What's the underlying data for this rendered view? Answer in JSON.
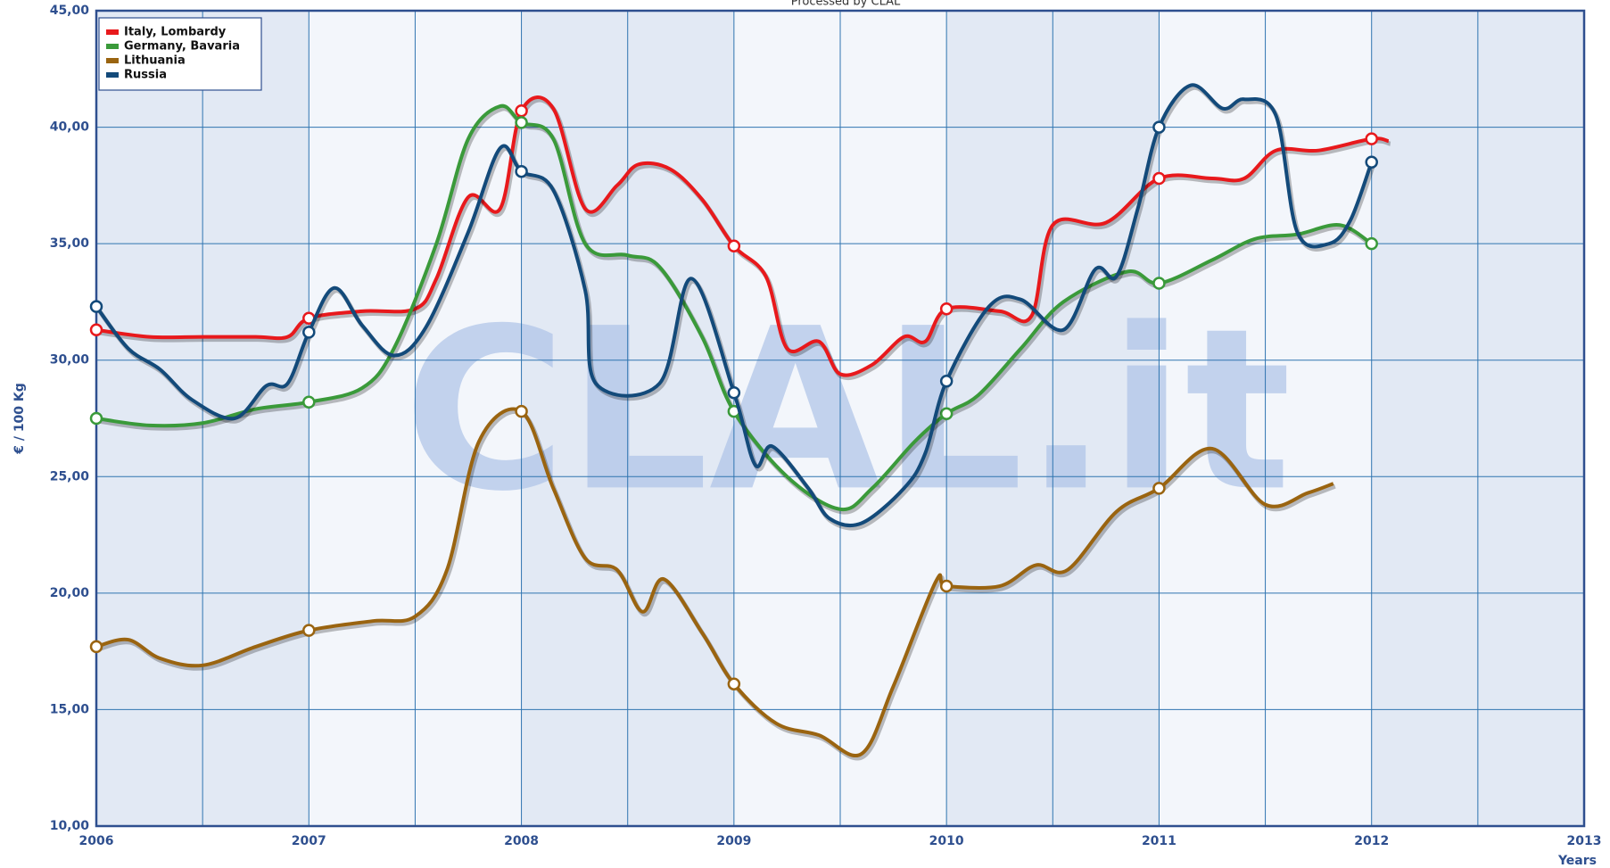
{
  "chart_data": {
    "type": "line",
    "title": "Processed by CLAL",
    "watermark": "CLAL.it",
    "y_label": "€ / 100 Kg",
    "x_label": "Years",
    "xlim": [
      2006,
      2013
    ],
    "xticks": [
      2006,
      2007,
      2008,
      2009,
      2010,
      2011,
      2012,
      2013
    ],
    "ylim": [
      10,
      45
    ],
    "yticks": [
      {
        "value": 10,
        "label": "10,00"
      },
      {
        "value": 15,
        "label": "15,00"
      },
      {
        "value": 20,
        "label": "20,00"
      },
      {
        "value": 25,
        "label": "25,00"
      },
      {
        "value": 30,
        "label": "30,00"
      },
      {
        "value": 35,
        "label": "35,00"
      },
      {
        "value": 40,
        "label": "40,00"
      },
      {
        "value": 45,
        "label": "45,00"
      }
    ],
    "grid": true,
    "legend": "top-left",
    "series": [
      {
        "name": "Italy, Lombardy",
        "color": "#e8191c",
        "x": [
          2006,
          2006.25,
          2006.5,
          2006.75,
          2006.9,
          2007,
          2007.25,
          2007.5,
          2007.6,
          2007.75,
          2007.9,
          2008,
          2008.15,
          2008.3,
          2008.45,
          2008.55,
          2008.7,
          2008.85,
          2009,
          2009.15,
          2009.25,
          2009.4,
          2009.5,
          2009.65,
          2009.8,
          2009.9,
          2010,
          2010.25,
          2010.4,
          2010.5,
          2010.75,
          2011,
          2011.25,
          2011.4,
          2011.55,
          2011.75,
          2012,
          2012.08
        ],
        "values": [
          31.3,
          31.0,
          31.0,
          31.0,
          31.0,
          31.8,
          32.1,
          32.2,
          33.5,
          37.0,
          36.5,
          40.7,
          40.8,
          36.5,
          37.5,
          38.4,
          38.2,
          36.9,
          34.9,
          33.6,
          30.5,
          30.8,
          29.4,
          29.8,
          31.0,
          30.8,
          32.2,
          32.1,
          31.9,
          35.8,
          35.9,
          37.8,
          37.8,
          37.8,
          39.0,
          39.0,
          39.5,
          39.4
        ]
      },
      {
        "name": "Germany, Bavaria",
        "color": "#3a9a3a",
        "x": [
          2006,
          2006.25,
          2006.5,
          2006.75,
          2007,
          2007.25,
          2007.4,
          2007.6,
          2007.75,
          2007.9,
          2008,
          2008.15,
          2008.3,
          2008.5,
          2008.65,
          2008.85,
          2009,
          2009.25,
          2009.5,
          2009.65,
          2009.85,
          2010,
          2010.15,
          2010.35,
          2010.55,
          2010.85,
          2011,
          2011.25,
          2011.45,
          2011.65,
          2011.85,
          2012
        ],
        "values": [
          27.5,
          27.2,
          27.3,
          27.9,
          28.2,
          28.8,
          30.5,
          35.0,
          39.5,
          40.9,
          40.2,
          39.5,
          35.0,
          34.5,
          34.0,
          31.0,
          27.8,
          25.0,
          23.6,
          24.5,
          26.5,
          27.7,
          28.5,
          30.5,
          32.5,
          33.8,
          33.3,
          34.3,
          35.2,
          35.4,
          35.8,
          35.0
        ]
      },
      {
        "name": "Lithuania",
        "color": "#9a6410",
        "x": [
          2006,
          2006.15,
          2006.3,
          2006.5,
          2006.75,
          2007,
          2007.3,
          2007.5,
          2007.65,
          2007.8,
          2008,
          2008.15,
          2008.3,
          2008.45,
          2008.57,
          2008.67,
          2008.85,
          2009,
          2009.2,
          2009.4,
          2009.6,
          2009.75,
          2009.95,
          2010,
          2010.25,
          2010.42,
          2010.57,
          2010.8,
          2011,
          2011.25,
          2011.5,
          2011.7,
          2011.82
        ],
        "values": [
          17.7,
          18.0,
          17.2,
          16.9,
          17.7,
          18.4,
          18.8,
          19.0,
          21.0,
          26.5,
          27.8,
          24.5,
          21.5,
          21.0,
          19.2,
          20.6,
          18.3,
          16.1,
          14.4,
          13.9,
          13.1,
          16.0,
          20.5,
          20.3,
          20.3,
          21.2,
          21.0,
          23.5,
          24.5,
          26.2,
          23.8,
          24.3,
          24.7
        ]
      },
      {
        "name": "Russia",
        "color": "#134a7a",
        "x": [
          2006,
          2006.15,
          2006.3,
          2006.45,
          2006.65,
          2006.8,
          2006.9,
          2007,
          2007.12,
          2007.25,
          2007.4,
          2007.55,
          2007.75,
          2007.9,
          2008,
          2008.15,
          2008.3,
          2008.35,
          2008.65,
          2008.8,
          2009,
          2009.1,
          2009.18,
          2009.35,
          2009.45,
          2009.6,
          2009.8,
          2009.9,
          2010,
          2010.2,
          2010.35,
          2010.55,
          2010.7,
          2010.8,
          2010.9,
          2011,
          2011.15,
          2011.3,
          2011.4,
          2011.55,
          2011.65,
          2011.8,
          2011.9,
          2012
        ],
        "values": [
          32.3,
          30.5,
          29.6,
          28.3,
          27.5,
          28.9,
          29.0,
          31.2,
          33.1,
          31.5,
          30.2,
          31.4,
          35.5,
          39.1,
          38.1,
          37.3,
          33.0,
          29.0,
          29.0,
          33.5,
          28.6,
          25.5,
          26.3,
          24.5,
          23.2,
          23.0,
          24.5,
          26.0,
          29.1,
          32.3,
          32.6,
          31.3,
          33.9,
          33.6,
          36.5,
          40.0,
          41.8,
          40.8,
          41.2,
          40.5,
          35.5,
          35.0,
          36.0,
          38.5
        ]
      }
    ]
  }
}
